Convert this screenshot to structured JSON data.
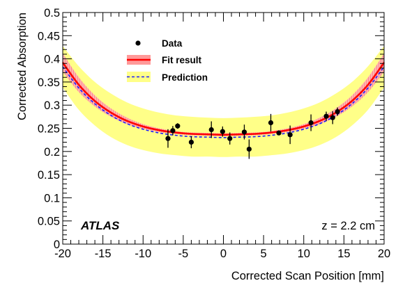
{
  "chart_data": {
    "type": "scatter",
    "title": "",
    "xlabel": "Corrected Scan Position [mm]",
    "ylabel": "Corrected Absorption",
    "xlim": [
      -20,
      20
    ],
    "ylim": [
      0,
      0.5
    ],
    "x_ticks": [
      -20,
      -15,
      -10,
      -5,
      0,
      5,
      10,
      15,
      20
    ],
    "x_tick_labels": [
      "-20",
      "-15",
      "-10",
      "-5",
      "0",
      "5",
      "10",
      "15",
      "20"
    ],
    "y_ticks": [
      0,
      0.05,
      0.1,
      0.15,
      0.2,
      0.25,
      0.3,
      0.35,
      0.4,
      0.45,
      0.5
    ],
    "y_tick_labels": [
      "0",
      "0.05",
      "0.1",
      "0.15",
      "0.2",
      "0.25",
      "0.3",
      "0.35",
      "0.4",
      "0.45",
      "0.5"
    ],
    "grid": false,
    "legend_position": "top-left",
    "annotations": {
      "experiment": "ATLAS",
      "depth": "z = 2.2 cm"
    },
    "series": [
      {
        "name": "Data",
        "kind": "points_with_errors",
        "color": "#000000",
        "x": [
          -6.9,
          -6.3,
          -5.7,
          -4.0,
          -1.5,
          -0.1,
          0.8,
          2.6,
          3.2,
          5.9,
          6.9,
          8.3,
          10.9,
          12.8,
          13.6,
          14.2
        ],
        "y": [
          0.228,
          0.245,
          0.255,
          0.22,
          0.247,
          0.243,
          0.228,
          0.242,
          0.205,
          0.262,
          0.24,
          0.236,
          0.262,
          0.276,
          0.273,
          0.286
        ],
        "err": [
          0.02,
          0.01,
          0.006,
          0.013,
          0.018,
          0.011,
          0.013,
          0.016,
          0.021,
          0.019,
          0.005,
          0.02,
          0.018,
          0.01,
          0.014,
          0.009
        ]
      },
      {
        "name": "Fit result",
        "kind": "curve_with_band",
        "color": "#ff0000",
        "band_color": "#ff9999",
        "x": [
          -20,
          -18,
          -16,
          -14,
          -12,
          -10,
          -8,
          -6,
          -4,
          -2,
          0,
          2,
          4,
          6,
          8,
          10,
          12,
          14,
          16,
          18,
          20
        ],
        "y": [
          0.392,
          0.344,
          0.309,
          0.284,
          0.266,
          0.254,
          0.246,
          0.241,
          0.238,
          0.237,
          0.236,
          0.237,
          0.238,
          0.241,
          0.246,
          0.254,
          0.266,
          0.284,
          0.309,
          0.344,
          0.392
        ],
        "band_halfwidth": [
          0.02,
          0.016,
          0.012,
          0.009,
          0.007,
          0.005,
          0.004,
          0.003,
          0.003,
          0.003,
          0.003,
          0.003,
          0.003,
          0.003,
          0.004,
          0.005,
          0.007,
          0.009,
          0.012,
          0.016,
          0.02
        ]
      },
      {
        "name": "Prediction",
        "kind": "curve_with_band",
        "color": "#1a1aff",
        "band_color": "#ffff88",
        "x": [
          -20,
          -18,
          -16,
          -14,
          -12,
          -10,
          -8,
          -6,
          -4,
          -2,
          0,
          2,
          4,
          6,
          8,
          10,
          12,
          14,
          16,
          18,
          20
        ],
        "y": [
          0.383,
          0.337,
          0.303,
          0.278,
          0.26,
          0.248,
          0.24,
          0.235,
          0.232,
          0.231,
          0.23,
          0.231,
          0.232,
          0.235,
          0.24,
          0.248,
          0.26,
          0.278,
          0.303,
          0.337,
          0.383
        ],
        "band_halfwidth": [
          0.045,
          0.047,
          0.047,
          0.047,
          0.046,
          0.045,
          0.044,
          0.043,
          0.043,
          0.042,
          0.042,
          0.042,
          0.043,
          0.043,
          0.044,
          0.045,
          0.046,
          0.047,
          0.047,
          0.047,
          0.045
        ]
      }
    ]
  }
}
